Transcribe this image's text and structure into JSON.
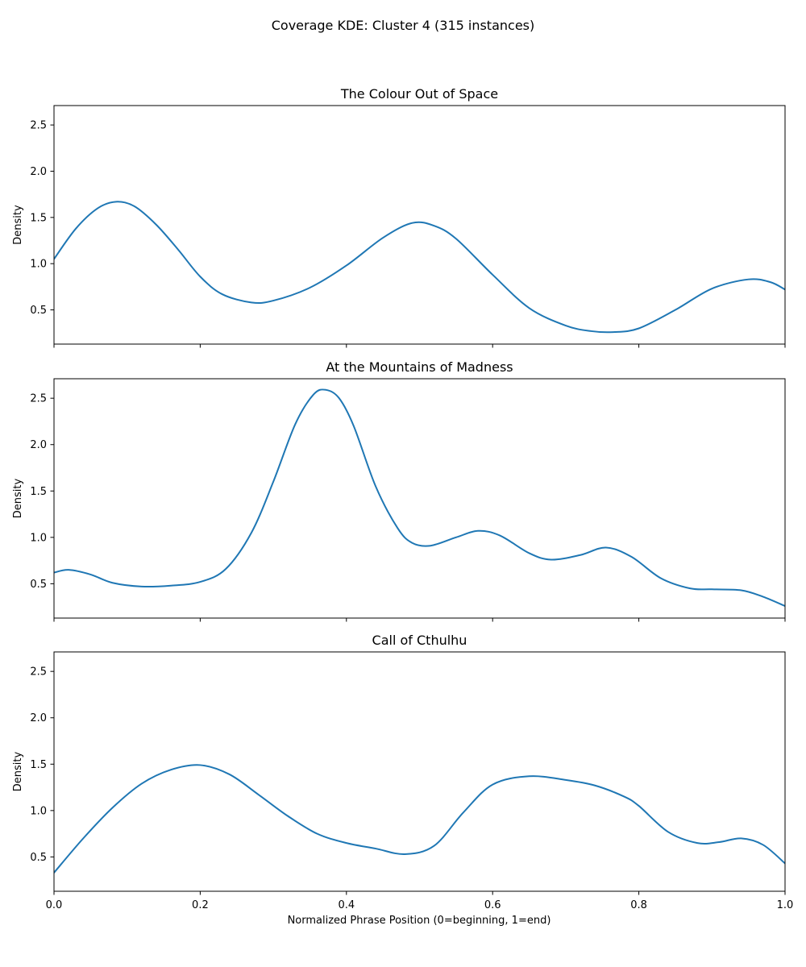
{
  "chart_data": {
    "type": "line",
    "title": "Coverage KDE: Cluster 4 (315 instances)",
    "xlabel": "Normalized Phrase Position (0=beginning, 1=end)",
    "xlim": [
      0.0,
      1.0
    ],
    "x_ticks": [
      "0.0",
      "0.2",
      "0.4",
      "0.6",
      "0.8",
      "1.0"
    ],
    "x_tick_values": [
      0.0,
      0.2,
      0.4,
      0.6,
      0.8,
      1.0
    ],
    "line_color": "#1f77b4",
    "grid": false,
    "subplots": [
      {
        "title": "The Colour Out of Space",
        "ylabel": "Density",
        "ylim": [
          0.13,
          2.71
        ],
        "y_ticks": [
          "0.5",
          "1.0",
          "1.5",
          "2.0",
          "2.5"
        ],
        "y_tick_values": [
          0.5,
          1.0,
          1.5,
          2.0,
          2.5
        ],
        "x": [
          0.0,
          0.03,
          0.06,
          0.085,
          0.11,
          0.14,
          0.17,
          0.2,
          0.23,
          0.27,
          0.3,
          0.35,
          0.4,
          0.45,
          0.49,
          0.52,
          0.55,
          0.6,
          0.65,
          0.7,
          0.735,
          0.765,
          0.8,
          0.85,
          0.9,
          0.95,
          0.98,
          1.0
        ],
        "values": [
          1.05,
          1.38,
          1.6,
          1.67,
          1.62,
          1.42,
          1.15,
          0.86,
          0.67,
          0.58,
          0.6,
          0.74,
          0.98,
          1.28,
          1.44,
          1.41,
          1.27,
          0.88,
          0.52,
          0.33,
          0.27,
          0.26,
          0.3,
          0.5,
          0.73,
          0.83,
          0.8,
          0.72
        ]
      },
      {
        "title": "At the Mountains of Madness",
        "ylabel": "Density",
        "ylim": [
          0.13,
          2.71
        ],
        "y_ticks": [
          "0.5",
          "1.0",
          "1.5",
          "2.0",
          "2.5"
        ],
        "y_tick_values": [
          0.5,
          1.0,
          1.5,
          2.0,
          2.5
        ],
        "x": [
          0.0,
          0.02,
          0.05,
          0.08,
          0.12,
          0.16,
          0.2,
          0.235,
          0.27,
          0.3,
          0.33,
          0.355,
          0.372,
          0.39,
          0.41,
          0.44,
          0.47,
          0.49,
          0.515,
          0.55,
          0.58,
          0.61,
          0.65,
          0.68,
          0.72,
          0.755,
          0.79,
          0.83,
          0.87,
          0.9,
          0.94,
          0.97,
          1.0
        ],
        "values": [
          0.62,
          0.65,
          0.6,
          0.51,
          0.47,
          0.48,
          0.52,
          0.66,
          1.05,
          1.6,
          2.22,
          2.54,
          2.59,
          2.5,
          2.2,
          1.55,
          1.1,
          0.94,
          0.91,
          1.0,
          1.07,
          1.02,
          0.83,
          0.76,
          0.81,
          0.89,
          0.79,
          0.56,
          0.45,
          0.44,
          0.43,
          0.36,
          0.26
        ]
      },
      {
        "title": "Call of Cthulhu",
        "ylabel": "Density",
        "ylim": [
          0.13,
          2.71
        ],
        "y_ticks": [
          "0.5",
          "1.0",
          "1.5",
          "2.0",
          "2.5"
        ],
        "y_tick_values": [
          0.5,
          1.0,
          1.5,
          2.0,
          2.5
        ],
        "x": [
          0.0,
          0.04,
          0.08,
          0.12,
          0.16,
          0.2,
          0.24,
          0.28,
          0.32,
          0.36,
          0.4,
          0.44,
          0.48,
          0.52,
          0.56,
          0.6,
          0.65,
          0.7,
          0.74,
          0.78,
          0.8,
          0.84,
          0.88,
          0.91,
          0.94,
          0.97,
          1.0
        ],
        "values": [
          0.33,
          0.7,
          1.03,
          1.29,
          1.44,
          1.49,
          1.39,
          1.17,
          0.94,
          0.75,
          0.65,
          0.59,
          0.53,
          0.62,
          0.98,
          1.28,
          1.37,
          1.33,
          1.27,
          1.15,
          1.05,
          0.77,
          0.65,
          0.66,
          0.7,
          0.63,
          0.43
        ]
      }
    ]
  }
}
